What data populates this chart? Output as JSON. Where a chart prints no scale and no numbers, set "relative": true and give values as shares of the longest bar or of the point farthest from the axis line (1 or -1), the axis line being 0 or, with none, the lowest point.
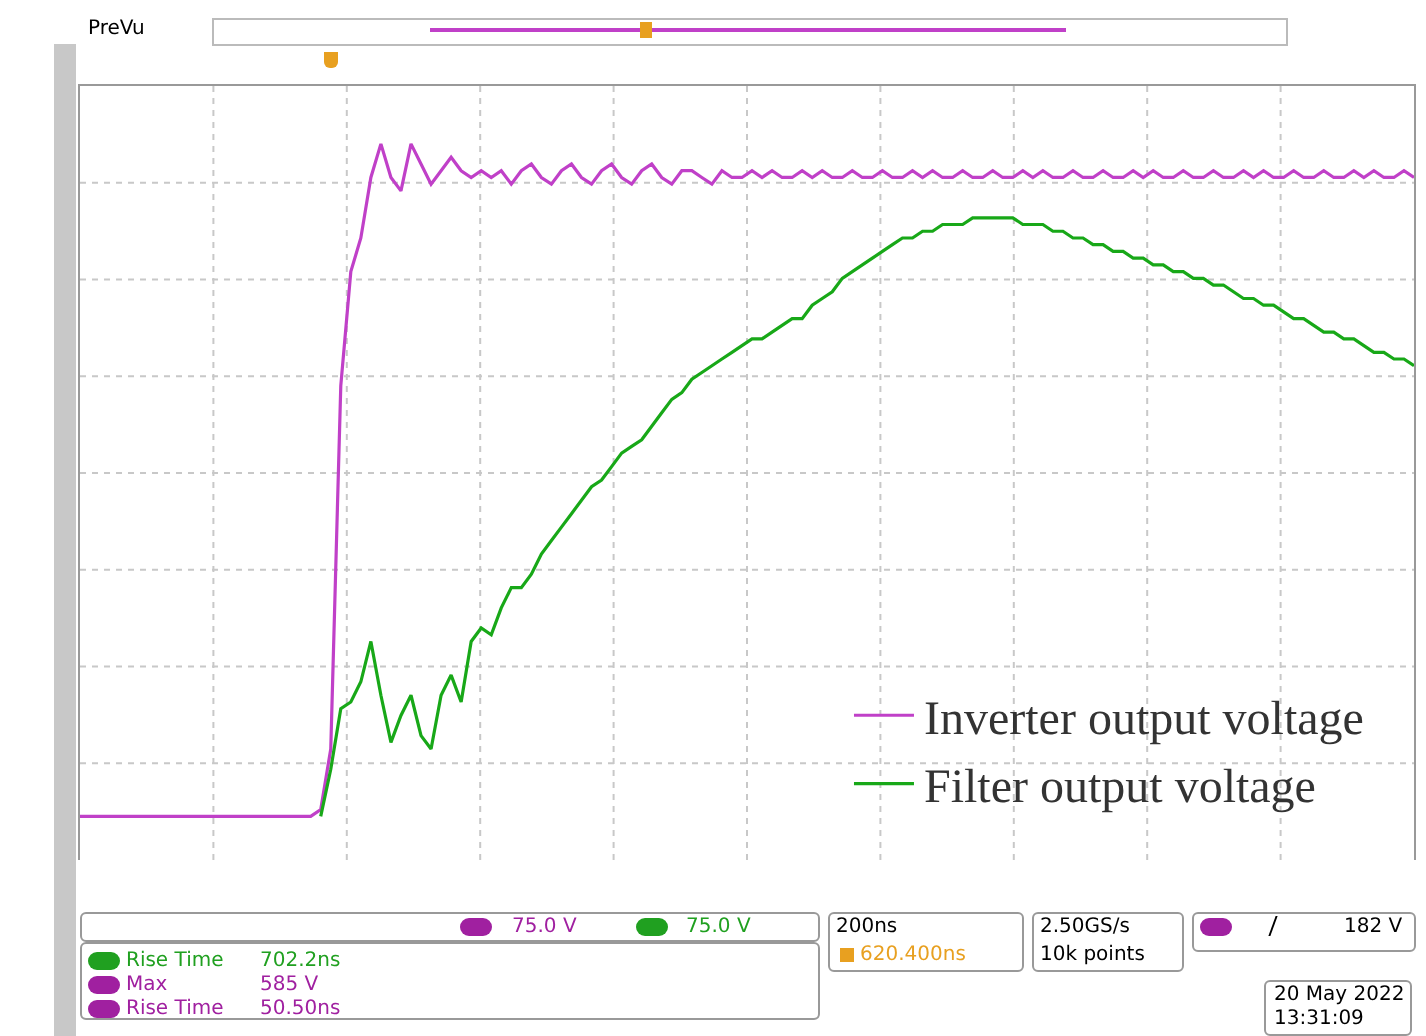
{
  "chart_data": {
    "type": "line",
    "relative": true,
    "grid": true,
    "tick_labels": false,
    "legend": "bottom right",
    "line_style": "solid",
    "categories": [
      null,
      null,
      null,
      null,
      null,
      null,
      null,
      null,
      null,
      null,
      null,
      null,
      null,
      null,
      null,
      null,
      null,
      null,
      null,
      null,
      null,
      null,
      null,
      null,
      null,
      null,
      null,
      null,
      null,
      null,
      null,
      null,
      null,
      null,
      null,
      null,
      null,
      null,
      null,
      null,
      null,
      null,
      null,
      null,
      null,
      null,
      null,
      null,
      null,
      null,
      null,
      null,
      null,
      null,
      null,
      null,
      null,
      null,
      null,
      null,
      null,
      null,
      null,
      null,
      null,
      null,
      null,
      null,
      null,
      null,
      null,
      null,
      null,
      null,
      null,
      null,
      null,
      null,
      null,
      null,
      null,
      null,
      null,
      null,
      null,
      null,
      null,
      null,
      null,
      null,
      null,
      null,
      null,
      null,
      null,
      null,
      null,
      null,
      null,
      null,
      null,
      null,
      null,
      null,
      null,
      null,
      null,
      null,
      null,
      null,
      null,
      null,
      null,
      null,
      null,
      null,
      null,
      null,
      null,
      null,
      null,
      null,
      null,
      null,
      null,
      null,
      null,
      null,
      null,
      null,
      null,
      null,
      null,
      null
    ],
    "series": [
      {
        "name": "Inverter output voltage",
        "color": "#c040c8",
        "values": [
          0,
          0,
          0,
          0,
          0,
          0,
          0,
          0,
          0,
          0,
          0,
          0,
          0,
          0,
          0,
          0,
          0,
          0,
          0,
          0,
          0,
          0,
          0,
          0,
          0.01,
          0.1,
          0.64,
          0.81,
          0.86,
          0.95,
          1,
          0.95,
          0.93,
          1,
          0.97,
          0.94,
          0.96,
          0.98,
          0.96,
          0.95,
          0.96,
          0.95,
          0.96,
          0.94,
          0.96,
          0.97,
          0.95,
          0.94,
          0.96,
          0.97,
          0.95,
          0.94,
          0.96,
          0.97,
          0.95,
          0.94,
          0.96,
          0.97,
          0.95,
          0.94,
          0.96,
          0.96,
          0.95,
          0.94,
          0.96,
          0.95,
          0.95,
          0.96,
          0.95,
          0.96,
          0.95,
          0.95,
          0.96,
          0.95,
          0.96,
          0.95,
          0.95,
          0.96,
          0.95,
          0.95,
          0.96,
          0.95,
          0.95,
          0.96,
          0.95,
          0.96,
          0.95,
          0.95,
          0.96,
          0.95,
          0.95,
          0.96,
          0.95,
          0.95,
          0.96,
          0.95,
          0.96,
          0.95,
          0.95,
          0.96,
          0.95,
          0.95,
          0.96,
          0.95,
          0.95,
          0.96,
          0.95,
          0.96,
          0.95,
          0.95,
          0.96,
          0.95,
          0.95,
          0.96,
          0.95,
          0.95,
          0.96,
          0.95,
          0.96,
          0.95,
          0.95,
          0.96,
          0.95,
          0.95,
          0.96,
          0.95,
          0.95,
          0.96,
          0.95,
          0.96,
          0.95,
          0.95,
          0.96,
          0.95
        ]
      },
      {
        "name": "Filter output voltage",
        "color": "#18a818",
        "values": [
          null,
          null,
          null,
          null,
          null,
          null,
          null,
          null,
          null,
          null,
          null,
          null,
          null,
          null,
          null,
          null,
          null,
          null,
          null,
          null,
          null,
          null,
          null,
          null,
          0,
          0.07,
          0.16,
          0.17,
          0.2,
          0.26,
          0.18,
          0.11,
          0.15,
          0.18,
          0.12,
          0.1,
          0.18,
          0.21,
          0.17,
          0.26,
          0.28,
          0.27,
          0.31,
          0.34,
          0.34,
          0.36,
          0.39,
          0.41,
          0.43,
          0.45,
          0.47,
          0.49,
          0.5,
          0.52,
          0.54,
          0.55,
          0.56,
          0.58,
          0.6,
          0.62,
          0.63,
          0.65,
          0.66,
          0.67,
          0.68,
          0.69,
          0.7,
          0.71,
          0.71,
          0.72,
          0.73,
          0.74,
          0.74,
          0.76,
          0.77,
          0.78,
          0.8,
          0.81,
          0.82,
          0.83,
          0.84,
          0.85,
          0.86,
          0.86,
          0.87,
          0.87,
          0.88,
          0.88,
          0.88,
          0.89,
          0.89,
          0.89,
          0.89,
          0.89,
          0.88,
          0.88,
          0.88,
          0.87,
          0.87,
          0.86,
          0.86,
          0.85,
          0.85,
          0.84,
          0.84,
          0.83,
          0.83,
          0.82,
          0.82,
          0.81,
          0.81,
          0.8,
          0.8,
          0.79,
          0.79,
          0.78,
          0.77,
          0.77,
          0.76,
          0.76,
          0.75,
          0.74,
          0.74,
          0.73,
          0.72,
          0.72,
          0.71,
          0.71,
          0.7,
          0.69,
          0.69,
          0.68,
          0.68,
          0.67
        ]
      }
    ],
    "annotations": [
      "PreVu",
      "75.0 V",
      "75.0 V",
      "200ns",
      "620.400ns",
      "2.50GS/s",
      "10k points",
      "182 V",
      "Rise Time",
      "702.2ns",
      "Max",
      "585 V",
      "Rise Time",
      "50.50ns",
      "20 May 2022",
      "13:31:09"
    ]
  }
}
